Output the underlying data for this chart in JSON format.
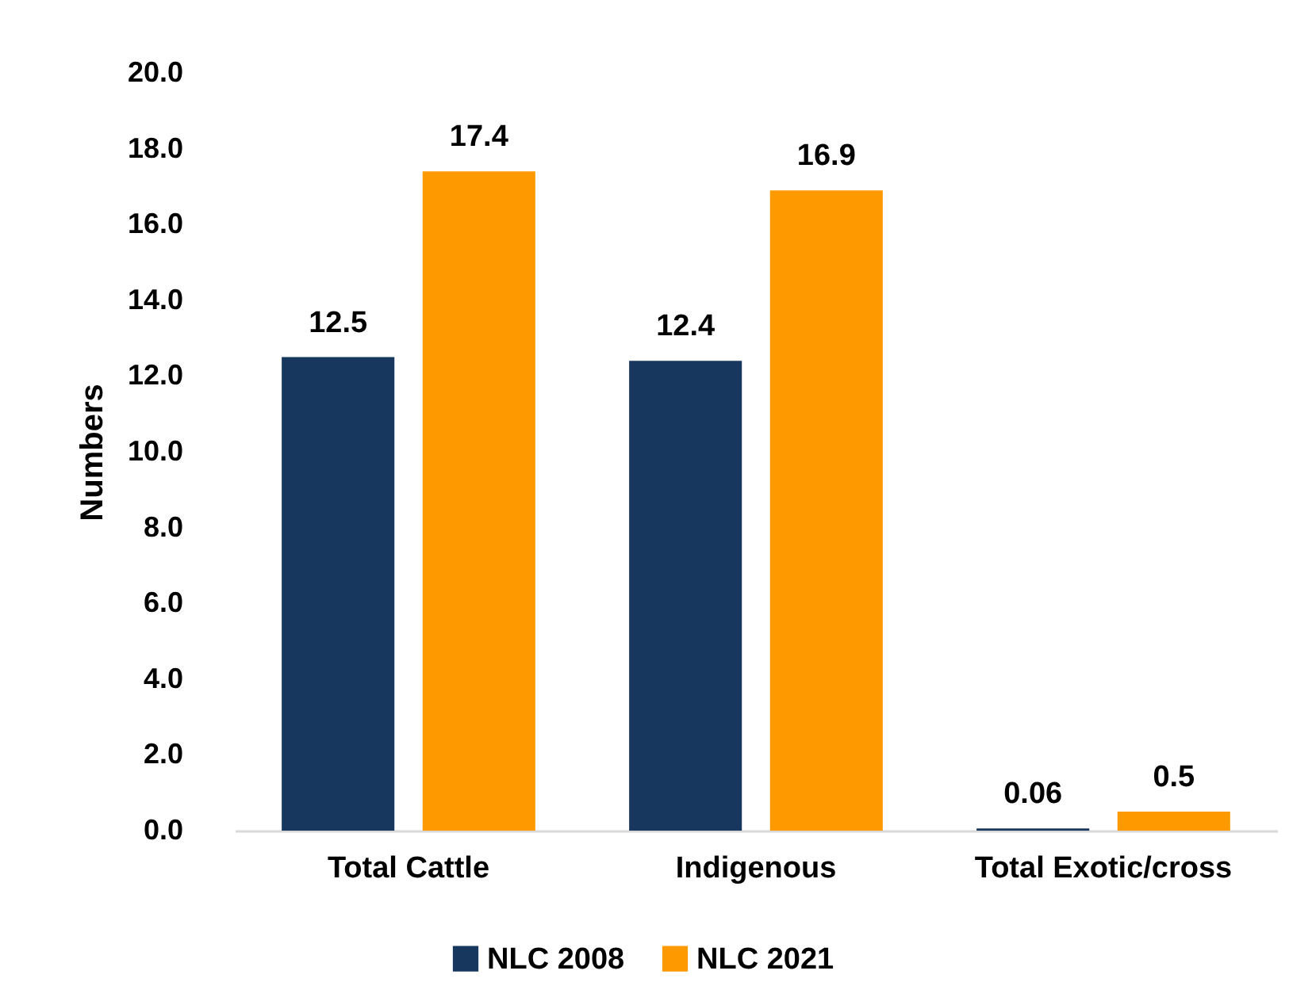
{
  "chart_data": {
    "type": "bar",
    "ylabel": "Numbers",
    "categories": [
      "Total Cattle",
      "Indigenous",
      "Total Exotic/cross"
    ],
    "series": [
      {
        "name": "NLC 2008",
        "color": "#17375e",
        "values": [
          12.5,
          12.4,
          0.06
        ]
      },
      {
        "name": "NLC 2021",
        "color": "#ff9900",
        "values": [
          17.4,
          16.9,
          0.5
        ]
      }
    ],
    "ylim": [
      0,
      20
    ],
    "yticks": [
      {
        "value": 0,
        "label": "0.0"
      },
      {
        "value": 2,
        "label": "2.0"
      },
      {
        "value": 4,
        "label": "4.0"
      },
      {
        "value": 6,
        "label": "6.0"
      },
      {
        "value": 8,
        "label": "8.0"
      },
      {
        "value": 10,
        "label": "10.0"
      },
      {
        "value": 12,
        "label": "12.0"
      },
      {
        "value": 14,
        "label": "14.0"
      },
      {
        "value": 16,
        "label": "16.0"
      },
      {
        "value": 18,
        "label": "18.0"
      },
      {
        "value": 20,
        "label": "20.0"
      }
    ],
    "data_labels": true,
    "legend": "bottom"
  }
}
